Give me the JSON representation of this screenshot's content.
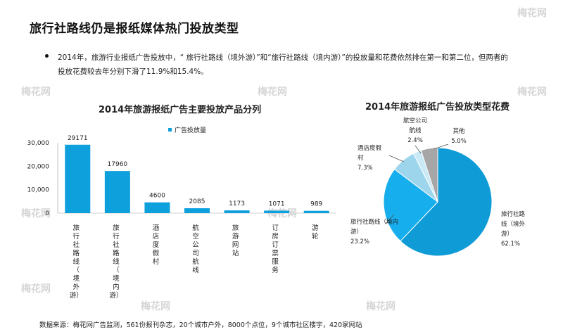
{
  "title": "旅行社路线仍是报纸媒体热门投放类型",
  "bullet": {
    "line1": "2014年，旅游行业报纸广告投放中，“ 旅行社路线（境外游）”和“旅行社路线（境内游）”的投放量和花费依然排在第一和第二位，但两者的",
    "line2": "投放花费较去年分别下滑了11.9%和15.4%。"
  },
  "source": "数据来源：梅花网广告监测，561份报刊杂志，20个城市户外，8000个点位，9个城市社区楼宇，420家网站",
  "watermark": "梅花网",
  "chart_data": [
    {
      "type": "bar",
      "title": "2014年旅游报纸广告主要投放产品分列",
      "categories": [
        "旅行社路线（境外游）",
        "旅行社路线（境内游）",
        "酒店度假村",
        "航空公司航线",
        "旅游网站",
        "订房订票服务",
        "游轮"
      ],
      "category_lines": [
        [
          "旅",
          "行",
          "社",
          "路",
          "线",
          "（",
          "境",
          "外",
          "游）"
        ],
        [
          "旅",
          "行",
          "社",
          "路",
          "线",
          "（",
          "境",
          "内",
          "游）"
        ],
        [
          "酒",
          "店",
          "度",
          "假",
          "村"
        ],
        [
          "航",
          "空",
          "公",
          "司",
          "航",
          "线"
        ],
        [
          "旅",
          "游",
          "网",
          "站"
        ],
        [
          "订",
          "房",
          "订",
          "票",
          "服",
          "务"
        ],
        [
          "游",
          "轮"
        ]
      ],
      "series": [
        {
          "name": "广告投放量",
          "values": [
            29171,
            17960,
            4600,
            2085,
            1173,
            1071,
            989
          ],
          "labels": [
            "29171",
            "17960",
            "4600",
            "2085",
            "1173",
            "1071",
            "989"
          ]
        }
      ],
      "yticks": [
        "30,000",
        "20,000",
        "10,000",
        "0"
      ],
      "ytick_values": [
        30000,
        20000,
        10000,
        0
      ],
      "ylim": [
        0,
        30000
      ],
      "legend": "top",
      "color": "#0da0dc"
    },
    {
      "type": "pie",
      "title": "2014年旅游报纸广告投放类型花费",
      "slices": [
        {
          "label": "旅行社路线（境外游）",
          "value": 62.1,
          "pct": "62.1%",
          "color": "#0e9bd6",
          "lines": [
            "旅行社路",
            "线（境外",
            "游）"
          ]
        },
        {
          "label": "旅行社路线（境内游）",
          "value": 23.2,
          "pct": "23.2%",
          "color": "#16aeec",
          "lines": [
            "旅行社路线（境内",
            "游）"
          ]
        },
        {
          "label": "酒店度假村",
          "value": 7.3,
          "pct": "7.3%",
          "color": "#9dd6ec",
          "lines": [
            "酒店度假",
            "村"
          ]
        },
        {
          "label": "航空公司航线",
          "value": 2.4,
          "pct": "2.4%",
          "color": "#c9e9f6",
          "lines": [
            "航空公司",
            "航线"
          ]
        },
        {
          "label": "其他",
          "value": 5.0,
          "pct": "5.0%",
          "color": "#a6a6a6",
          "lines": [
            "其他"
          ]
        }
      ]
    }
  ]
}
